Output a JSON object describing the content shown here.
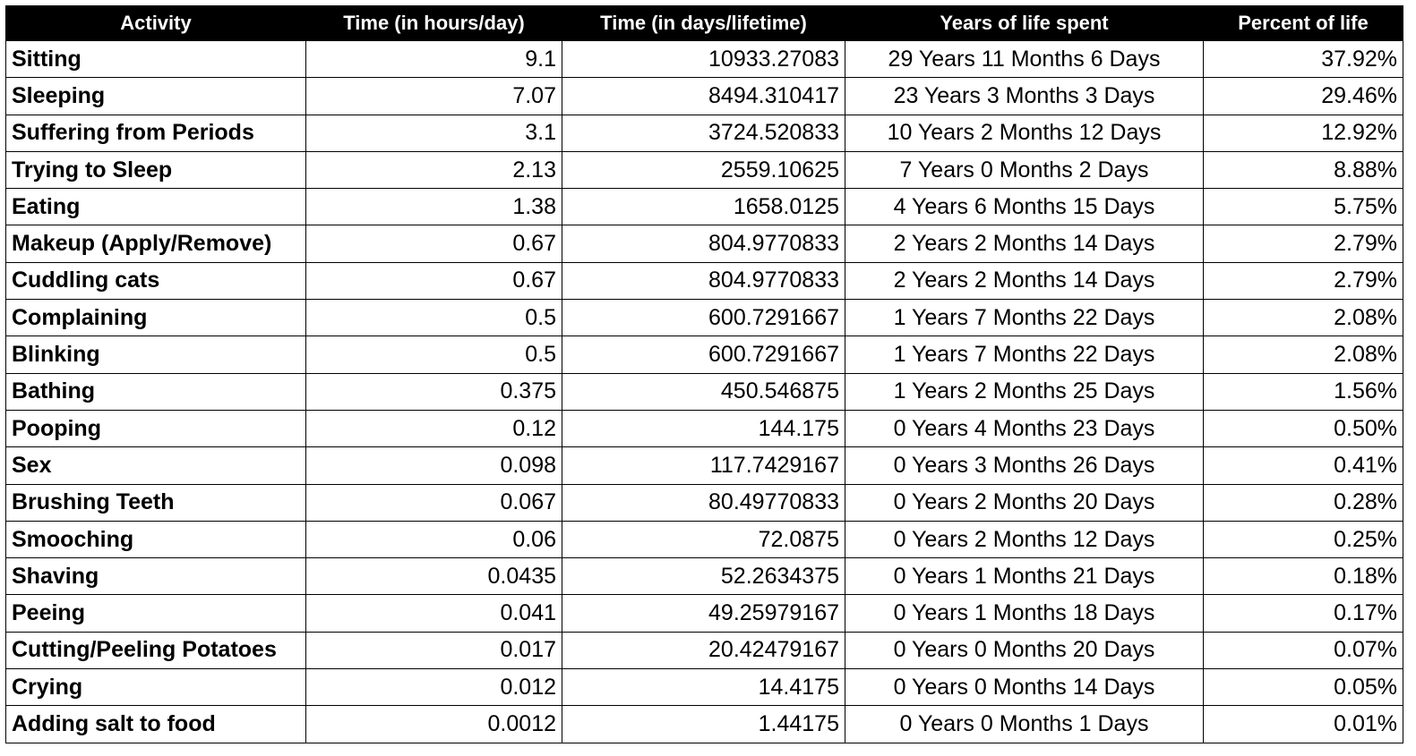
{
  "table": {
    "headers": [
      "Activity",
      "Time (in hours/day)",
      "Time (in days/lifetime)",
      "Years of life spent",
      "Percent of life"
    ],
    "rows": [
      {
        "activity": "Sitting",
        "hours": "9.1",
        "days": "10933.27083",
        "years": "29 Years 11 Months 6 Days",
        "percent": "37.92%"
      },
      {
        "activity": "Sleeping",
        "hours": "7.07",
        "days": "8494.310417",
        "years": "23 Years 3 Months 3 Days",
        "percent": "29.46%"
      },
      {
        "activity": "Suffering from Periods",
        "hours": "3.1",
        "days": "3724.520833",
        "years": "10 Years 2 Months 12 Days",
        "percent": "12.92%"
      },
      {
        "activity": "Trying to Sleep",
        "hours": "2.13",
        "days": "2559.10625",
        "years": "7 Years 0 Months 2 Days",
        "percent": "8.88%"
      },
      {
        "activity": "Eating",
        "hours": "1.38",
        "days": "1658.0125",
        "years": "4 Years 6 Months 15 Days",
        "percent": "5.75%"
      },
      {
        "activity": "Makeup (Apply/Remove)",
        "hours": "0.67",
        "days": "804.9770833",
        "years": "2 Years 2 Months 14 Days",
        "percent": "2.79%"
      },
      {
        "activity": "Cuddling cats",
        "hours": "0.67",
        "days": "804.9770833",
        "years": "2 Years 2 Months 14 Days",
        "percent": "2.79%"
      },
      {
        "activity": "Complaining",
        "hours": "0.5",
        "days": "600.7291667",
        "years": "1 Years 7 Months 22 Days",
        "percent": "2.08%"
      },
      {
        "activity": "Blinking",
        "hours": "0.5",
        "days": "600.7291667",
        "years": "1 Years 7 Months 22 Days",
        "percent": "2.08%"
      },
      {
        "activity": "Bathing",
        "hours": "0.375",
        "days": "450.546875",
        "years": "1 Years 2 Months 25 Days",
        "percent": "1.56%"
      },
      {
        "activity": "Pooping",
        "hours": "0.12",
        "days": "144.175",
        "years": "0 Years 4 Months 23 Days",
        "percent": "0.50%"
      },
      {
        "activity": "Sex",
        "hours": "0.098",
        "days": "117.7429167",
        "years": "0 Years 3 Months 26 Days",
        "percent": "0.41%"
      },
      {
        "activity": "Brushing Teeth",
        "hours": "0.067",
        "days": "80.49770833",
        "years": "0 Years 2 Months 20 Days",
        "percent": "0.28%"
      },
      {
        "activity": "Smooching",
        "hours": "0.06",
        "days": "72.0875",
        "years": "0 Years 2 Months 12 Days",
        "percent": "0.25%"
      },
      {
        "activity": "Shaving",
        "hours": "0.0435",
        "days": "52.2634375",
        "years": "0 Years 1 Months 21 Days",
        "percent": "0.18%"
      },
      {
        "activity": "Peeing",
        "hours": "0.041",
        "days": "49.25979167",
        "years": "0 Years 1 Months 18 Days",
        "percent": "0.17%"
      },
      {
        "activity": "Cutting/Peeling Potatoes",
        "hours": "0.017",
        "days": "20.42479167",
        "years": "0 Years 0 Months 20 Days",
        "percent": "0.07%"
      },
      {
        "activity": "Crying",
        "hours": "0.012",
        "days": "14.4175",
        "years": "0 Years 0 Months 14 Days",
        "percent": "0.05%"
      },
      {
        "activity": "Adding salt to food",
        "hours": "0.0012",
        "days": "1.44175",
        "years": "0 Years 0 Months 1 Days",
        "percent": "0.01%"
      }
    ]
  }
}
